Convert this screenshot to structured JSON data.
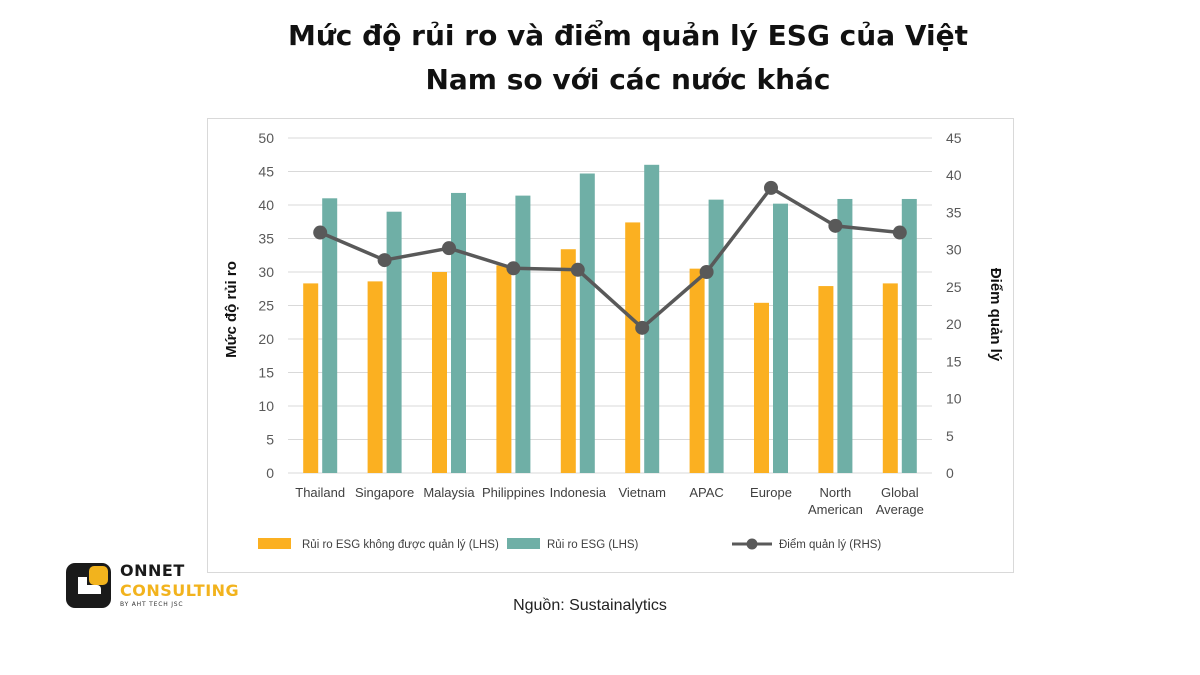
{
  "chart_data": {
    "type": "bar",
    "title_line1": "Mức độ rủi ro và điểm quản lý ESG của Việt",
    "title_line2": "Nam so với các nước khác",
    "categories": [
      [
        "Thailand"
      ],
      [
        "Singapore"
      ],
      [
        "Malaysia"
      ],
      [
        "Philippines"
      ],
      [
        "Indonesia"
      ],
      [
        "Vietnam"
      ],
      [
        "APAC"
      ],
      [
        "Europe"
      ],
      [
        "North",
        "American"
      ],
      [
        "Global",
        "Average"
      ]
    ],
    "series": [
      {
        "name": "Rủi ro ESG không được quản lý (LHS)",
        "type": "bar",
        "axis": "left",
        "color": "#FBB021",
        "values": [
          28.3,
          28.6,
          30.0,
          31.0,
          33.4,
          37.4,
          30.5,
          25.4,
          27.9,
          28.3
        ]
      },
      {
        "name": "Rủi ro ESG (LHS)",
        "type": "bar",
        "axis": "left",
        "color": "#6FAFA6",
        "values": [
          41.0,
          39.0,
          41.8,
          41.4,
          44.7,
          46.0,
          40.8,
          40.2,
          40.9,
          40.9
        ]
      },
      {
        "name": "Điểm quản lý (RHS)",
        "type": "line",
        "axis": "right",
        "color": "#595959",
        "values": [
          32.3,
          28.6,
          30.2,
          27.5,
          27.3,
          19.5,
          27.0,
          38.3,
          33.2,
          32.3
        ]
      }
    ],
    "ylabel_left": "Mức độ rủi ro",
    "ylabel_right": "Điểm quản lý",
    "ylim_left": [
      0,
      50
    ],
    "ylim_right": [
      0,
      45
    ],
    "yticks_left": [
      0,
      5,
      10,
      15,
      20,
      25,
      30,
      35,
      40,
      45,
      50
    ],
    "yticks_right": [
      0,
      5,
      10,
      15,
      20,
      25,
      30,
      35,
      40,
      45
    ],
    "grid": true,
    "legend_position": "bottom"
  },
  "logo": {
    "name": "ONNET",
    "sub": "CONSULTING",
    "tag": "BY AHT TECH JSC",
    "colors": {
      "dark": "#1a1a1a",
      "accent": "#f2b31d"
    }
  },
  "source": "Nguồn: Sustainalytics"
}
